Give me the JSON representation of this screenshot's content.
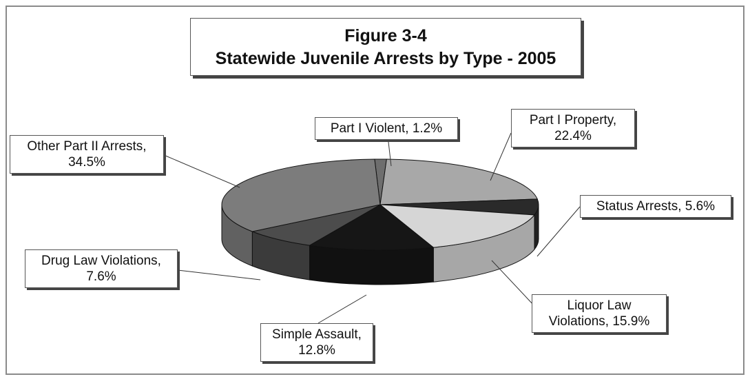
{
  "figure": {
    "title_line1": "Figure 3-4",
    "title_line2": "Statewide Juvenile Arrests by Type - 2005"
  },
  "chart_data": {
    "type": "pie",
    "style": "3d",
    "title": "Figure 3-4 Statewide Juvenile Arrests by Type - 2005",
    "unit": "%",
    "slices": [
      {
        "name": "Part I Violent",
        "value": 1.2,
        "label_line1": "Part I Violent, 1.2%",
        "label_line2": "",
        "color": "#6e6e6e"
      },
      {
        "name": "Part I Property",
        "value": 22.4,
        "label_line1": "Part I Property,",
        "label_line2": "22.4%",
        "color": "#a8a8a8"
      },
      {
        "name": "Status Arrests",
        "value": 5.6,
        "label_line1": "Status Arrests, 5.6%",
        "label_line2": "",
        "color": "#2a2a2a"
      },
      {
        "name": "Liquor Law Violations",
        "value": 15.9,
        "label_line1": "Liquor Law",
        "label_line2": "Violations, 15.9%",
        "color": "#d6d6d6"
      },
      {
        "name": "Simple Assault",
        "value": 12.8,
        "label_line1": "Simple Assault,",
        "label_line2": "12.8%",
        "color": "#161616"
      },
      {
        "name": "Drug Law Violations",
        "value": 7.6,
        "label_line1": "Drug Law Violations,",
        "label_line2": "7.6%",
        "color": "#4c4c4c"
      },
      {
        "name": "Other Part II Arrests",
        "value": 34.5,
        "label_line1": "Other Part II Arrests,",
        "label_line2": "34.5%",
        "color": "#7c7c7c"
      }
    ]
  }
}
